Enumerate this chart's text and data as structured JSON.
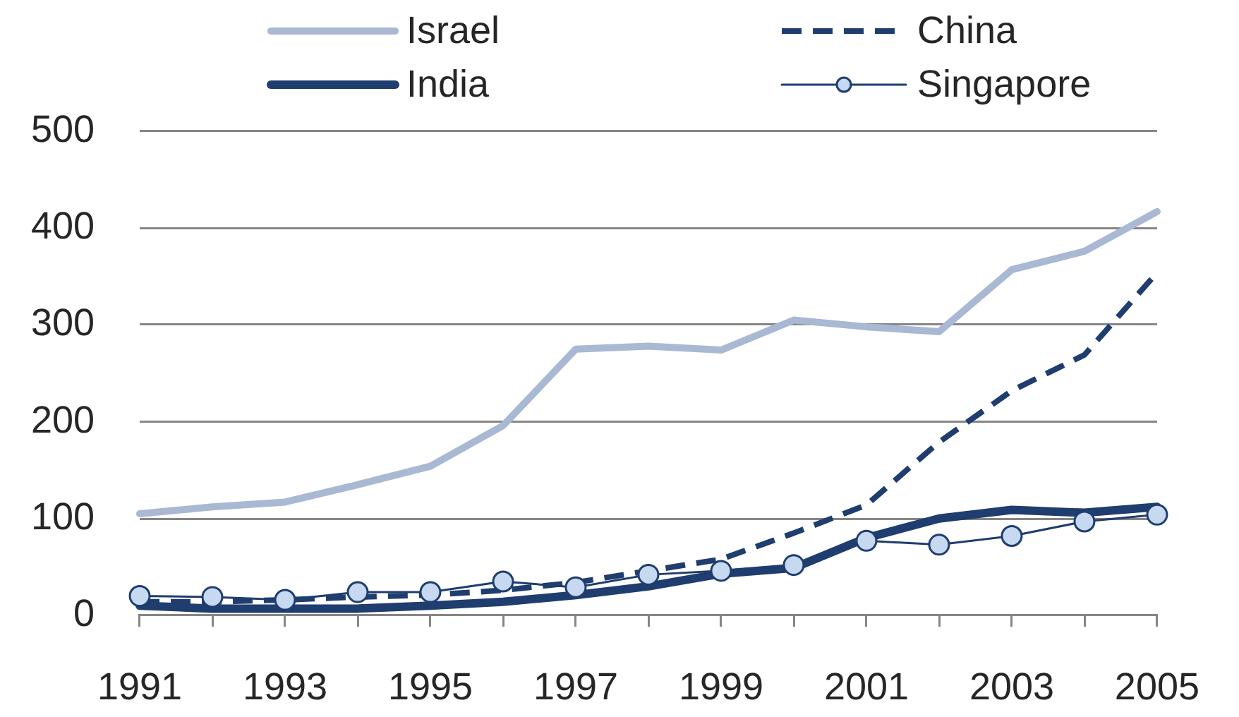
{
  "chart_data": {
    "type": "line",
    "categories": [
      "1991",
      null,
      "1993",
      null,
      "1995",
      null,
      "1997",
      null,
      "1999",
      null,
      "2001",
      null,
      "2003",
      null,
      "2005"
    ],
    "series": [
      {
        "name": "Israel",
        "color": "#a9b8d3",
        "line_style": "solid",
        "marker": "none",
        "values": [
          105,
          112,
          117,
          135,
          154,
          196,
          275,
          278,
          274,
          305,
          298,
          293,
          357,
          376,
          417
        ]
      },
      {
        "name": "China",
        "color": "#1f3d6e",
        "line_style": "dashed",
        "marker": "none",
        "values": [
          14,
          14,
          16,
          19,
          21,
          26,
          34,
          46,
          58,
          85,
          114,
          179,
          232,
          269,
          354
        ]
      },
      {
        "name": "India",
        "color": "#1f3d6e",
        "line_style": "solid",
        "marker": "none",
        "values": [
          10,
          7,
          7,
          7,
          10,
          14,
          21,
          30,
          43,
          49,
          80,
          100,
          109,
          106,
          112
        ]
      },
      {
        "name": "Singapore",
        "color": "#1f3d6e",
        "line_style": "solid",
        "marker": "circle",
        "values": [
          20,
          19,
          16,
          24,
          24,
          35,
          29,
          42,
          46,
          52,
          77,
          73,
          82,
          97,
          104
        ]
      }
    ],
    "ylim": [
      0,
      500
    ],
    "yticks": [
      0,
      100,
      200,
      300,
      400,
      500
    ],
    "grid": "y",
    "legend": "top"
  }
}
